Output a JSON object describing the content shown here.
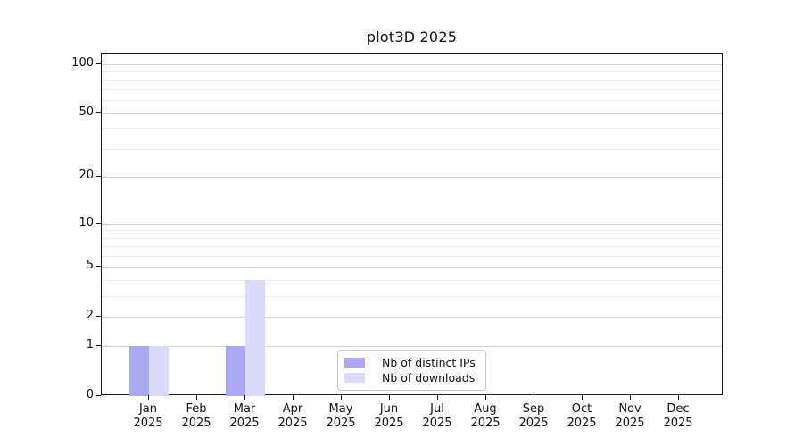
{
  "chart_data": {
    "type": "bar",
    "title": "plot3D 2025",
    "categories": [
      "Jan",
      "Feb",
      "Mar",
      "Apr",
      "May",
      "Jun",
      "Jul",
      "Aug",
      "Sep",
      "Oct",
      "Nov",
      "Dec"
    ],
    "x_year_label": "2025",
    "series": [
      {
        "name": "Nb of distinct IPs",
        "color": "#a9a9f4",
        "values": [
          1,
          0,
          1,
          0,
          0,
          0,
          0,
          0,
          0,
          0,
          0,
          0
        ]
      },
      {
        "name": "Nb of downloads",
        "color": "#d9d9f9",
        "values": [
          1,
          0,
          4,
          0,
          0,
          0,
          0,
          0,
          0,
          0,
          0,
          0
        ]
      }
    ],
    "yscale": "log1p",
    "ylim": [
      0,
      116
    ],
    "yticks": [
      0,
      1,
      2,
      5,
      10,
      20,
      50,
      100
    ],
    "yticklabels": [
      "0",
      "1",
      "2",
      "5",
      "10",
      "20",
      "50",
      "100"
    ],
    "minor_gridlines": [
      3,
      4,
      6,
      7,
      8,
      9,
      30,
      40,
      60,
      70,
      80,
      90
    ],
    "grid": true,
    "legend_position": "bottom-center inside plot",
    "colors": {
      "grid_major": "#d4d4d4",
      "grid_minor": "#ececec",
      "axis": "#1a1a1a",
      "text": "#111111",
      "background": "#ffffff"
    }
  }
}
